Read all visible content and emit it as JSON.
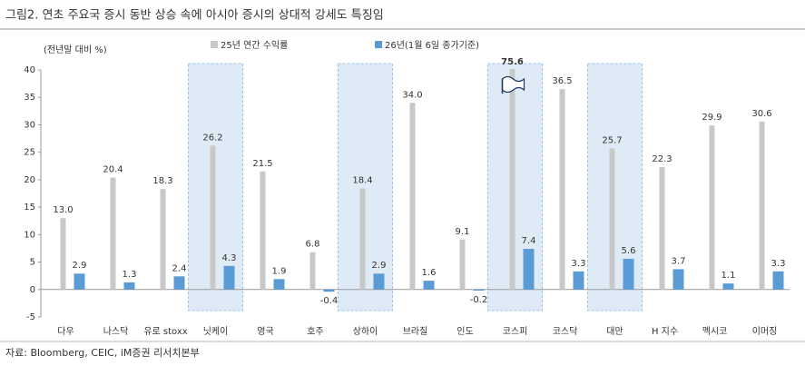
{
  "chart_data": {
    "type": "bar",
    "title": "그림2.   연초 주요국 증시 동반 상승 속에 아시아 증시의 상대적 강세도 특징임",
    "y_label": "(전년말 대비 %)",
    "source": "자료: Bloomberg, CEIC, iM증권 리서치본부",
    "categories": [
      "다우",
      "나스닥",
      "유로 stoxx",
      "닛케이",
      "영국",
      "호주",
      "상하이",
      "브라질",
      "인도",
      "코스피",
      "코스닥",
      "대만",
      "H 지수",
      "멕시코",
      "이머징"
    ],
    "series": [
      {
        "name": "25년 연간 수익률",
        "color": "#c8c8c8",
        "values": [
          13.0,
          20.4,
          18.3,
          26.2,
          21.5,
          6.8,
          18.4,
          34.0,
          9.1,
          75.6,
          36.5,
          25.7,
          22.3,
          29.9,
          30.6
        ],
        "value_labels": [
          "13.0",
          "20.4",
          "18.3",
          "26.2",
          "21.5",
          "6.8",
          "18.4",
          "34.0",
          "9.1",
          "75.6",
          "36.5",
          "25.7",
          "22.3",
          "29.9",
          "30.6"
        ]
      },
      {
        "name": "26년(1월 6일 종가기준)",
        "color": "#5b9bd5",
        "values": [
          2.9,
          1.3,
          2.4,
          4.3,
          1.9,
          -0.4,
          2.9,
          1.6,
          -0.2,
          7.4,
          3.3,
          5.6,
          3.7,
          1.1,
          3.3
        ],
        "value_labels": [
          "2.9",
          "1.3",
          "2.4",
          "4.3",
          "1.9",
          "-0.4",
          "2.9",
          "1.6",
          "-0.2",
          "7.4",
          "3.3",
          "5.6",
          "3.7",
          "1.1",
          "3.3"
        ]
      }
    ],
    "highlight": [
      3,
      6,
      9,
      11
    ],
    "ylim": [
      -5,
      40
    ],
    "yticks": [
      -5,
      0,
      5,
      10,
      15,
      20,
      25,
      30,
      35,
      40
    ],
    "grid": false
  }
}
